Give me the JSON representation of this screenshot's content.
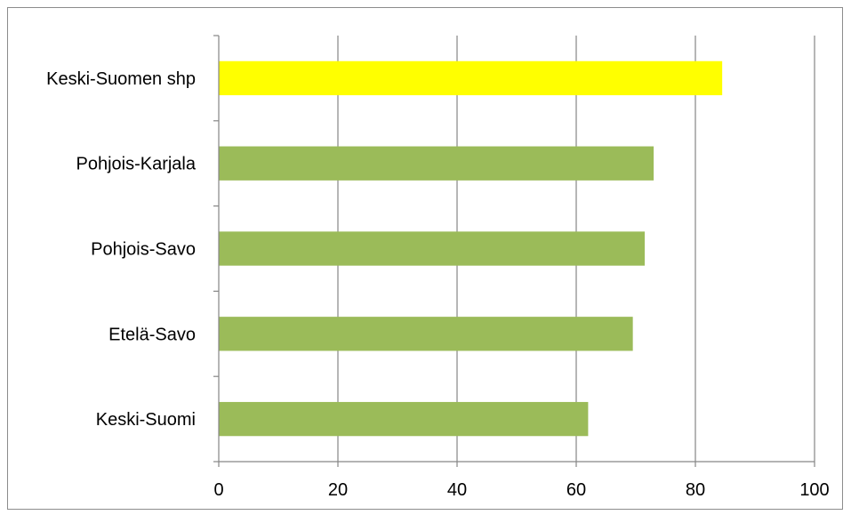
{
  "chart_data": {
    "type": "bar",
    "orientation": "horizontal",
    "title": "",
    "xlabel": "",
    "ylabel": "",
    "categories": [
      "Keski-Suomen shp",
      "Pohjois-Karjala",
      "Pohjois-Savo",
      "Etelä-Savo",
      "Keski-Suomi"
    ],
    "values": [
      84.5,
      73,
      71.5,
      69.5,
      62
    ],
    "bar_colors": [
      "#ffff00",
      "#9bbb59",
      "#9bbb59",
      "#9bbb59",
      "#9bbb59"
    ],
    "xlim": [
      0,
      100
    ],
    "x_ticks": [
      "0",
      "20",
      "40",
      "60",
      "80",
      "100"
    ],
    "grid": "vertical",
    "legend": "none"
  }
}
